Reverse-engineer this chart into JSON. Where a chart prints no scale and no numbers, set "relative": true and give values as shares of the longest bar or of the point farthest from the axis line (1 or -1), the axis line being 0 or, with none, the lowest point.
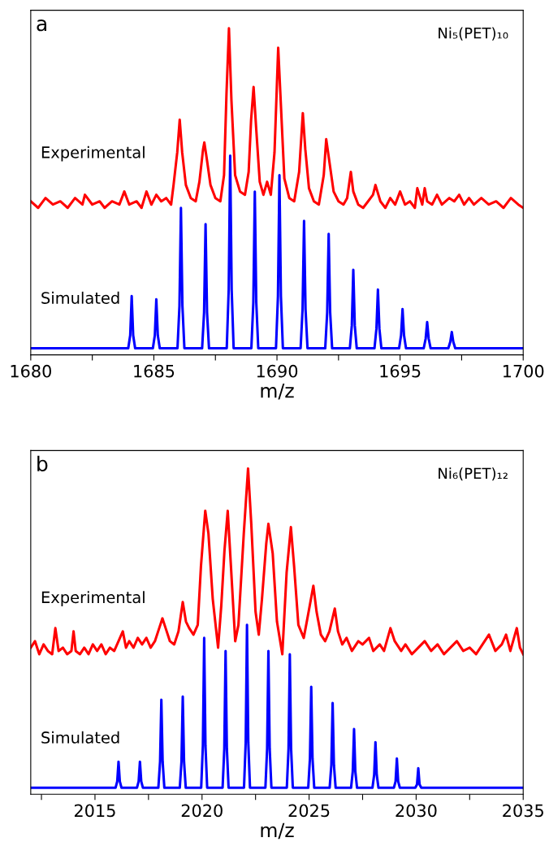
{
  "chart_data": [
    {
      "type": "line",
      "title": "a",
      "xlabel": "m/z",
      "relative": true,
      "tick_labels": "x",
      "xlim": [
        1680,
        1700
      ],
      "xticks": [
        1680,
        {
          "value": 1682.5,
          "label": null
        },
        1685,
        {
          "value": 1687.5,
          "label": null
        },
        1690,
        {
          "value": 1692.5,
          "label": null
        },
        1695,
        {
          "value": 1697.5,
          "label": null
        },
        1700
      ],
      "annotations": [
        "Ni₅(PET)₁₀"
      ],
      "series": [
        {
          "name": "Experimental",
          "color": "#ff0000",
          "x": [
            1680.0,
            1680.3,
            1680.6,
            1680.9,
            1681.2,
            1681.5,
            1681.8,
            1682.1,
            1682.2,
            1682.5,
            1682.8,
            1683.0,
            1683.3,
            1683.6,
            1683.8,
            1684.0,
            1684.3,
            1684.5,
            1684.7,
            1684.9,
            1685.1,
            1685.3,
            1685.5,
            1685.7,
            1685.8,
            1685.95,
            1686.05,
            1686.15,
            1686.3,
            1686.5,
            1686.7,
            1686.85,
            1687.0,
            1687.05,
            1687.15,
            1687.3,
            1687.5,
            1687.7,
            1687.85,
            1687.95,
            1688.05,
            1688.15,
            1688.3,
            1688.5,
            1688.7,
            1688.85,
            1688.95,
            1689.05,
            1689.15,
            1689.3,
            1689.45,
            1689.6,
            1689.75,
            1689.9,
            1690.05,
            1690.15,
            1690.3,
            1690.5,
            1690.7,
            1690.9,
            1691.05,
            1691.15,
            1691.3,
            1691.5,
            1691.7,
            1691.9,
            1692.0,
            1692.15,
            1692.3,
            1692.5,
            1692.7,
            1692.85,
            1693.0,
            1693.1,
            1693.3,
            1693.5,
            1693.7,
            1693.9,
            1694.0,
            1694.2,
            1694.4,
            1694.6,
            1694.8,
            1695.0,
            1695.2,
            1695.4,
            1695.6,
            1695.7,
            1695.9,
            1696.0,
            1696.1,
            1696.3,
            1696.5,
            1696.7,
            1697.0,
            1697.2,
            1697.4,
            1697.6,
            1697.8,
            1698.0,
            1698.3,
            1698.6,
            1698.9,
            1699.2,
            1699.5,
            1699.8,
            1700.0
          ],
          "values": [
            0.47,
            0.45,
            0.48,
            0.46,
            0.47,
            0.45,
            0.48,
            0.46,
            0.49,
            0.46,
            0.47,
            0.45,
            0.47,
            0.46,
            0.5,
            0.46,
            0.47,
            0.45,
            0.5,
            0.46,
            0.49,
            0.47,
            0.48,
            0.46,
            0.52,
            0.62,
            0.72,
            0.62,
            0.52,
            0.48,
            0.47,
            0.53,
            0.63,
            0.65,
            0.6,
            0.52,
            0.48,
            0.47,
            0.55,
            0.8,
            1.0,
            0.78,
            0.55,
            0.5,
            0.49,
            0.56,
            0.72,
            0.82,
            0.7,
            0.53,
            0.49,
            0.53,
            0.49,
            0.62,
            0.94,
            0.78,
            0.54,
            0.48,
            0.47,
            0.56,
            0.74,
            0.63,
            0.51,
            0.47,
            0.46,
            0.55,
            0.66,
            0.58,
            0.5,
            0.47,
            0.46,
            0.48,
            0.56,
            0.5,
            0.46,
            0.45,
            0.47,
            0.49,
            0.52,
            0.47,
            0.45,
            0.48,
            0.46,
            0.5,
            0.46,
            0.47,
            0.45,
            0.51,
            0.46,
            0.51,
            0.47,
            0.46,
            0.49,
            0.46,
            0.48,
            0.47,
            0.49,
            0.46,
            0.48,
            0.46,
            0.48,
            0.46,
            0.47,
            0.45,
            0.48,
            0.46,
            0.45
          ]
        },
        {
          "name": "Simulated",
          "color": "#0000ff",
          "x": [
            1680,
            1683.96,
            1684.04,
            1684.1,
            1684.16,
            1684.24,
            1684.96,
            1685.04,
            1685.1,
            1685.16,
            1685.24,
            1685.96,
            1686.04,
            1686.1,
            1686.16,
            1686.24,
            1686.96,
            1687.04,
            1687.1,
            1687.16,
            1687.24,
            1687.96,
            1688.04,
            1688.1,
            1688.16,
            1688.24,
            1688.96,
            1689.04,
            1689.1,
            1689.16,
            1689.24,
            1689.96,
            1690.04,
            1690.1,
            1690.16,
            1690.24,
            1690.96,
            1691.04,
            1691.1,
            1691.16,
            1691.24,
            1691.96,
            1692.04,
            1692.1,
            1692.16,
            1692.24,
            1692.96,
            1693.04,
            1693.1,
            1693.16,
            1693.24,
            1693.96,
            1694.04,
            1694.1,
            1694.16,
            1694.24,
            1694.96,
            1695.04,
            1695.1,
            1695.16,
            1695.24,
            1695.96,
            1696.04,
            1696.1,
            1696.16,
            1696.24,
            1696.96,
            1697.04,
            1697.1,
            1697.16,
            1697.24,
            1700
          ],
          "values": [
            0.02,
            0.02,
            0.06,
            0.18,
            0.06,
            0.02,
            0.02,
            0.06,
            0.17,
            0.06,
            0.02,
            0.02,
            0.15,
            0.45,
            0.15,
            0.02,
            0.02,
            0.13,
            0.4,
            0.13,
            0.02,
            0.02,
            0.2,
            0.61,
            0.2,
            0.02,
            0.02,
            0.16,
            0.5,
            0.16,
            0.02,
            0.02,
            0.18,
            0.55,
            0.18,
            0.02,
            0.02,
            0.14,
            0.41,
            0.14,
            0.02,
            0.02,
            0.13,
            0.37,
            0.13,
            0.02,
            0.02,
            0.09,
            0.26,
            0.09,
            0.02,
            0.02,
            0.08,
            0.2,
            0.08,
            0.02,
            0.02,
            0.06,
            0.14,
            0.06,
            0.02,
            0.02,
            0.05,
            0.1,
            0.05,
            0.02,
            0.02,
            0.04,
            0.07,
            0.04,
            0.02,
            0.02
          ]
        }
      ]
    },
    {
      "type": "line",
      "title": "b",
      "xlabel": "m/z",
      "relative": true,
      "tick_labels": "x",
      "xlim": [
        2012,
        2035
      ],
      "xticks": [
        {
          "value": 2012.5,
          "label": null
        },
        2015,
        {
          "value": 2017.5,
          "label": null
        },
        2020,
        {
          "value": 2022.5,
          "label": null
        },
        2025,
        {
          "value": 2027.5,
          "label": null
        },
        2030,
        {
          "value": 2032.5,
          "label": null
        },
        2035
      ],
      "annotations": [
        "Ni₆(PET)₁₂"
      ],
      "series": [
        {
          "name": "Experimental",
          "color": "#ff0000",
          "x": [
            2012.0,
            2012.2,
            2012.4,
            2012.6,
            2012.8,
            2013.0,
            2013.15,
            2013.3,
            2013.5,
            2013.7,
            2013.9,
            2014.0,
            2014.1,
            2014.3,
            2014.5,
            2014.7,
            2014.9,
            2015.1,
            2015.3,
            2015.5,
            2015.7,
            2015.9,
            2016.1,
            2016.3,
            2016.45,
            2016.6,
            2016.8,
            2017.0,
            2017.2,
            2017.4,
            2017.6,
            2017.8,
            2018.0,
            2018.15,
            2018.3,
            2018.5,
            2018.7,
            2018.9,
            2019.1,
            2019.25,
            2019.4,
            2019.6,
            2019.8,
            2019.95,
            2020.15,
            2020.3,
            2020.5,
            2020.75,
            2020.9,
            2021.05,
            2021.2,
            2021.35,
            2021.55,
            2021.7,
            2021.95,
            2022.15,
            2022.3,
            2022.5,
            2022.65,
            2022.8,
            2023.0,
            2023.1,
            2023.3,
            2023.5,
            2023.75,
            2023.95,
            2024.15,
            2024.3,
            2024.5,
            2024.75,
            2024.95,
            2025.2,
            2025.35,
            2025.55,
            2025.75,
            2025.95,
            2026.2,
            2026.35,
            2026.55,
            2026.75,
            2027.0,
            2027.3,
            2027.5,
            2027.8,
            2028.0,
            2028.3,
            2028.5,
            2028.8,
            2029.0,
            2029.3,
            2029.5,
            2029.8,
            2030.1,
            2030.4,
            2030.7,
            2031.0,
            2031.3,
            2031.6,
            2031.9,
            2032.2,
            2032.5,
            2032.8,
            2033.1,
            2033.4,
            2033.7,
            2034.0,
            2034.2,
            2034.4,
            2034.7,
            2034.85,
            2035.0
          ],
          "values": [
            0.45,
            0.47,
            0.43,
            0.46,
            0.44,
            0.43,
            0.51,
            0.44,
            0.45,
            0.43,
            0.44,
            0.5,
            0.44,
            0.43,
            0.45,
            0.43,
            0.46,
            0.44,
            0.46,
            0.43,
            0.45,
            0.44,
            0.47,
            0.5,
            0.45,
            0.47,
            0.45,
            0.48,
            0.46,
            0.48,
            0.45,
            0.47,
            0.51,
            0.54,
            0.51,
            0.47,
            0.46,
            0.5,
            0.59,
            0.53,
            0.51,
            0.49,
            0.52,
            0.7,
            0.87,
            0.8,
            0.6,
            0.45,
            0.58,
            0.75,
            0.87,
            0.7,
            0.47,
            0.52,
            0.8,
            1.0,
            0.83,
            0.56,
            0.49,
            0.6,
            0.77,
            0.83,
            0.74,
            0.53,
            0.43,
            0.68,
            0.82,
            0.7,
            0.52,
            0.48,
            0.55,
            0.64,
            0.56,
            0.49,
            0.47,
            0.5,
            0.57,
            0.5,
            0.46,
            0.48,
            0.44,
            0.47,
            0.46,
            0.48,
            0.44,
            0.46,
            0.44,
            0.51,
            0.47,
            0.44,
            0.46,
            0.43,
            0.45,
            0.47,
            0.44,
            0.46,
            0.43,
            0.45,
            0.47,
            0.44,
            0.45,
            0.43,
            0.46,
            0.49,
            0.44,
            0.46,
            0.49,
            0.44,
            0.51,
            0.45,
            0.43
          ]
        },
        {
          "name": "Simulated",
          "color": "#0000ff",
          "x": [
            2012,
            2015.96,
            2016.04,
            2016.1,
            2016.16,
            2016.24,
            2016.96,
            2017.04,
            2017.1,
            2017.16,
            2017.24,
            2017.96,
            2018.04,
            2018.1,
            2018.16,
            2018.24,
            2018.96,
            2019.04,
            2019.1,
            2019.16,
            2019.24,
            2019.96,
            2020.04,
            2020.1,
            2020.16,
            2020.24,
            2020.96,
            2021.04,
            2021.1,
            2021.16,
            2021.24,
            2021.96,
            2022.04,
            2022.1,
            2022.16,
            2022.24,
            2022.96,
            2023.04,
            2023.1,
            2023.16,
            2023.24,
            2023.96,
            2024.04,
            2024.1,
            2024.16,
            2024.24,
            2024.96,
            2025.04,
            2025.1,
            2025.16,
            2025.24,
            2025.96,
            2026.04,
            2026.1,
            2026.16,
            2026.24,
            2026.96,
            2027.04,
            2027.1,
            2027.16,
            2027.24,
            2027.96,
            2028.04,
            2028.1,
            2028.16,
            2028.24,
            2028.96,
            2029.04,
            2029.1,
            2029.16,
            2029.24,
            2029.96,
            2030.04,
            2030.1,
            2030.16,
            2030.24,
            2035
          ],
          "values": [
            0.02,
            0.02,
            0.04,
            0.1,
            0.04,
            0.02,
            0.02,
            0.04,
            0.1,
            0.04,
            0.02,
            0.02,
            0.1,
            0.29,
            0.1,
            0.02,
            0.02,
            0.1,
            0.3,
            0.1,
            0.02,
            0.02,
            0.15,
            0.48,
            0.15,
            0.02,
            0.02,
            0.14,
            0.44,
            0.14,
            0.02,
            0.02,
            0.16,
            0.52,
            0.16,
            0.02,
            0.02,
            0.14,
            0.44,
            0.14,
            0.02,
            0.02,
            0.14,
            0.43,
            0.14,
            0.02,
            0.02,
            0.11,
            0.33,
            0.11,
            0.02,
            0.02,
            0.09,
            0.28,
            0.09,
            0.02,
            0.02,
            0.07,
            0.2,
            0.07,
            0.02,
            0.02,
            0.06,
            0.16,
            0.06,
            0.02,
            0.02,
            0.04,
            0.11,
            0.04,
            0.02,
            0.02,
            0.03,
            0.08,
            0.03,
            0.02,
            0.02
          ]
        }
      ]
    }
  ]
}
